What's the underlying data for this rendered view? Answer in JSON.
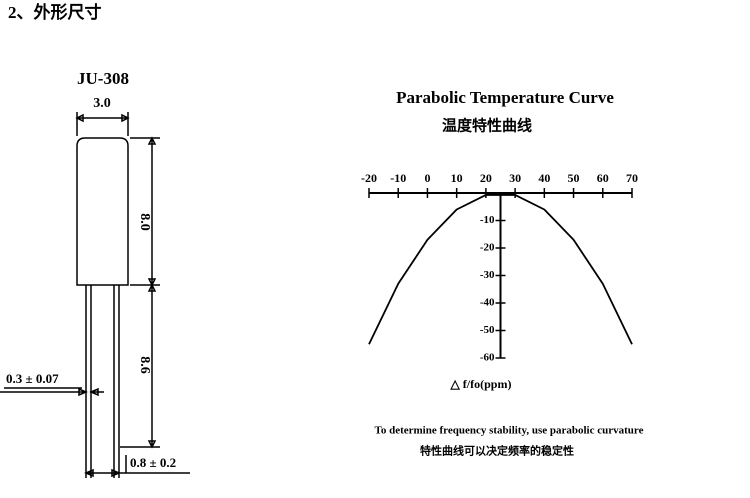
{
  "heading": "2、外形尺寸",
  "dimension_drawing": {
    "model": "JU-308",
    "width": "3.0",
    "body_height": "8.0",
    "lead_length": "8.6",
    "lead_diameter": "0.3 ± 0.07",
    "lead_spacing": "0.8 ± 0.2"
  },
  "chart_data": {
    "type": "line",
    "title": "Parabolic Temperature Curve",
    "subtitle": "温度特性曲线",
    "y_label": "△ f/fo(ppm)",
    "x": [
      -20,
      -10,
      0,
      10,
      20,
      30,
      40,
      50,
      60,
      70
    ],
    "series": [
      {
        "color": "#000000",
        "values": [
          -55,
          -33,
          -17,
          -6,
          -0.7,
          -0.7,
          -6,
          -17,
          -33,
          -55
        ]
      }
    ],
    "xlim": [
      -20,
      70
    ],
    "xticks": [
      -20,
      -10,
      0,
      10,
      20,
      30,
      40,
      50,
      60,
      70
    ],
    "ylim": [
      -60,
      0
    ],
    "yticks": [
      -10,
      -20,
      -30,
      -40,
      -50,
      -60
    ],
    "y_axis_at": 25,
    "notes": [
      "To determine frequency stability, use parabolic curvature",
      "特性曲线可以决定频率的稳定性"
    ]
  }
}
